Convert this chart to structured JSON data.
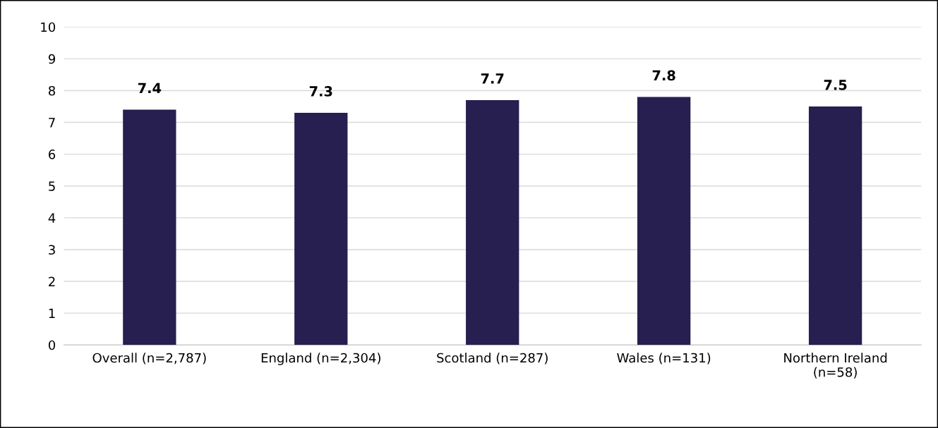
{
  "chart_data": {
    "type": "bar",
    "categories": [
      "Overall (n=2,787)",
      "England (n=2,304)",
      "Scotland (n=287)",
      "Wales (n=131)",
      "Northern Ireland\n(n=58)"
    ],
    "values": [
      7.4,
      7.3,
      7.7,
      7.8,
      7.5
    ],
    "color": "#271f4f",
    "ylim": [
      0,
      10
    ],
    "yticks": [
      0,
      1,
      2,
      3,
      4,
      5,
      6,
      7,
      8,
      9,
      10
    ],
    "grid": "y",
    "data_labels": true,
    "legend": false
  }
}
